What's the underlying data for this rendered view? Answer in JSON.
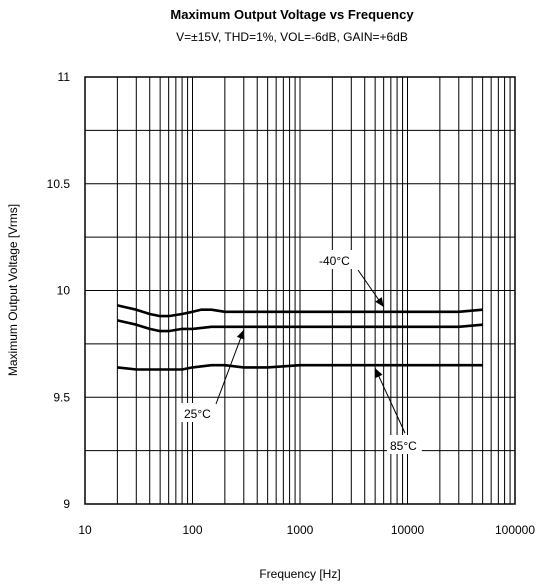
{
  "chart_data": {
    "type": "line",
    "title": "Maximum Output Voltage vs Frequency",
    "subtitle": "V=±15V, THD=1%, VOL=-6dB, GAIN=+6dB",
    "xlabel": "Frequency [Hz]",
    "ylabel": "Maximum Output Voltage [Vrms]",
    "x_scale": "log",
    "xlim": [
      10,
      100000
    ],
    "ylim": [
      9,
      11
    ],
    "x_ticks": [
      "10",
      "100",
      "1000",
      "10000",
      "100000"
    ],
    "y_ticks": [
      "9",
      "9.5",
      "10",
      "10.5",
      "11"
    ],
    "grid": true,
    "series": [
      {
        "name": "-40°C",
        "x": [
          20,
          30,
          40,
          50,
          60,
          80,
          100,
          120,
          150,
          200,
          500,
          1000,
          5000,
          10000,
          30000,
          50000
        ],
        "y": [
          9.93,
          9.91,
          9.89,
          9.88,
          9.88,
          9.89,
          9.9,
          9.91,
          9.91,
          9.9,
          9.9,
          9.9,
          9.9,
          9.9,
          9.9,
          9.91
        ]
      },
      {
        "name": "25°C",
        "x": [
          20,
          30,
          40,
          50,
          60,
          80,
          100,
          150,
          200,
          500,
          1000,
          5000,
          10000,
          30000,
          50000
        ],
        "y": [
          9.86,
          9.84,
          9.82,
          9.81,
          9.81,
          9.82,
          9.82,
          9.83,
          9.83,
          9.83,
          9.83,
          9.83,
          9.83,
          9.83,
          9.84
        ]
      },
      {
        "name": "85°C",
        "x": [
          20,
          30,
          50,
          80,
          100,
          150,
          200,
          300,
          500,
          1000,
          5000,
          10000,
          30000,
          50000
        ],
        "y": [
          9.64,
          9.63,
          9.63,
          9.63,
          9.64,
          9.65,
          9.65,
          9.64,
          9.64,
          9.65,
          9.65,
          9.65,
          9.65,
          9.65
        ]
      }
    ],
    "annotations": [
      {
        "text": "-40°C",
        "series": "-40°C",
        "arrow_to": [
          6000,
          9.9
        ]
      },
      {
        "text": "25°C",
        "series": "25°C",
        "arrow_to": [
          300,
          9.83
        ]
      },
      {
        "text": "85°C",
        "series": "85°C",
        "arrow_to": [
          5000,
          9.65
        ]
      }
    ]
  }
}
